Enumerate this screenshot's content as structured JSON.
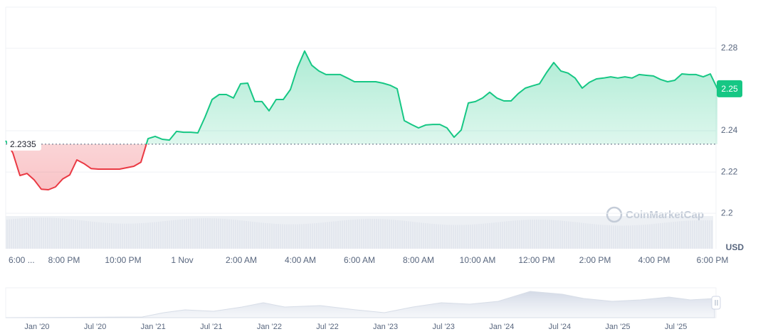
{
  "chart_data": {
    "type": "line",
    "baseline": 2.2335,
    "current_price": 2.25,
    "currency": "USD",
    "watermark": "CoinMarketCap",
    "up_color": "#16c784",
    "down_color": "#ea3943",
    "ylim": [
      2.1828,
      2.3
    ],
    "yticks": [
      2.2,
      2.22,
      2.24,
      2.28
    ],
    "grid": true,
    "x_tick_labels": [
      "6:00 ...",
      "8:00 PM",
      "10:00 PM",
      "1 Nov",
      "2:00 AM",
      "4:00 AM",
      "6:00 AM",
      "8:00 AM",
      "10:00 AM",
      "12:00 PM",
      "2:00 PM",
      "4:00 PM",
      "6:00 PM"
    ],
    "navigator_labels": [
      "Jan '20",
      "Jul '20",
      "Jan '21",
      "Jul '21",
      "Jan '22",
      "Jul '22",
      "Jan '23",
      "Jul '23",
      "Jan '24",
      "Jul '24",
      "Jan '25",
      "Jul '25"
    ],
    "values": [
      2.2352,
      2.2293,
      2.2183,
      2.2193,
      2.2162,
      2.2117,
      2.2114,
      2.2128,
      2.2166,
      2.2186,
      2.2259,
      2.2241,
      2.2217,
      2.2214,
      2.2214,
      2.2214,
      2.2214,
      2.2221,
      2.2228,
      2.2248,
      2.2362,
      2.2373,
      2.2359,
      2.2355,
      2.2397,
      2.2393,
      2.2393,
      2.239,
      2.2466,
      2.2552,
      2.2576,
      2.2576,
      2.2559,
      2.2628,
      2.2631,
      2.2542,
      2.2542,
      2.2497,
      2.2552,
      2.2552,
      2.26,
      2.2707,
      2.2787,
      2.2718,
      2.269,
      2.2673,
      2.2673,
      2.2673,
      2.2656,
      2.2638,
      2.2638,
      2.2638,
      2.2638,
      2.2631,
      2.2621,
      2.2604,
      2.2449,
      2.2431,
      2.2414,
      2.2428,
      2.2431,
      2.2431,
      2.2414,
      2.2369,
      2.2404,
      2.2535,
      2.2542,
      2.2559,
      2.2587,
      2.2559,
      2.2545,
      2.2545,
      2.258,
      2.2607,
      2.2618,
      2.2628,
      2.2683,
      2.2731,
      2.269,
      2.268,
      2.2656,
      2.2607,
      2.2635,
      2.2652,
      2.2656,
      2.2662,
      2.2656,
      2.2662,
      2.2656,
      2.2673,
      2.2669,
      2.2666,
      2.2649,
      2.2638,
      2.2645,
      2.2676,
      2.2673,
      2.2673,
      2.2662,
      2.2676,
      2.2604
    ]
  }
}
